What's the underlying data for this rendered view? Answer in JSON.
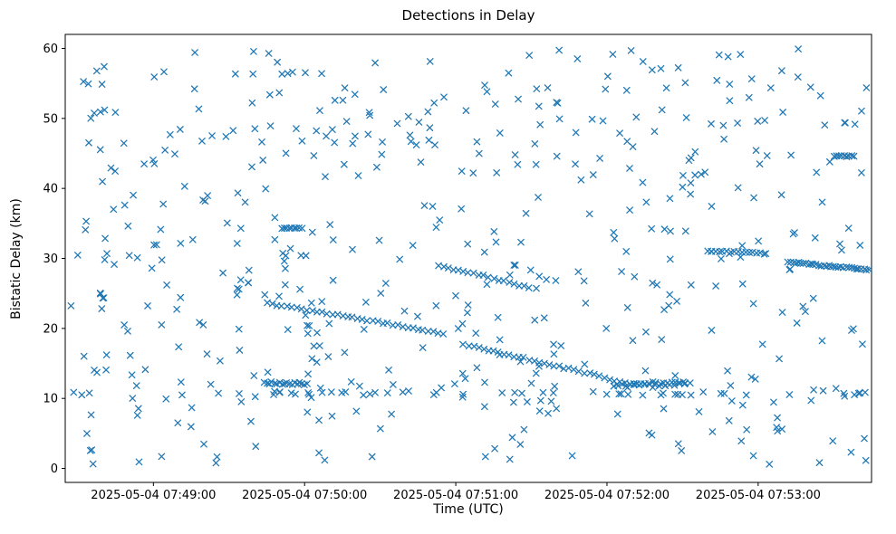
{
  "chart_data": {
    "type": "scatter",
    "title": "Detections in Delay",
    "xlabel": "Time (UTC)",
    "ylabel": "Bistatic Delay (km)",
    "marker": {
      "glyph": "x",
      "color": "#1f77b4",
      "size": 6
    },
    "x_axis": {
      "epoch_label": "2025-05-04 07:48:25",
      "domain_s": [
        0,
        320
      ],
      "ticks": [
        {
          "s": 35,
          "label": "2025-05-04 07:49:00"
        },
        {
          "s": 95,
          "label": "2025-05-04 07:50:00"
        },
        {
          "s": 155,
          "label": "2025-05-04 07:51:00"
        },
        {
          "s": 215,
          "label": "2025-05-04 07:52:00"
        },
        {
          "s": 275,
          "label": "2025-05-04 07:53:00"
        }
      ]
    },
    "y_axis": {
      "min": -2,
      "max": 62,
      "ticks": [
        0,
        10,
        20,
        30,
        40,
        50,
        60
      ]
    },
    "tracks": [
      {
        "name": "descending-track-main-upper",
        "step_s": 2,
        "jitter": 0.12,
        "waypoints": [
          [
            80,
            23.6
          ],
          [
            100,
            22.4
          ],
          [
            120,
            21.2
          ],
          [
            140,
            19.9
          ],
          [
            150,
            19.2
          ]
        ]
      },
      {
        "name": "descending-track-main-lower",
        "step_s": 2,
        "jitter": 0.15,
        "waypoints": [
          [
            158,
            17.8
          ],
          [
            172,
            16.6
          ],
          [
            188,
            15.2
          ],
          [
            204,
            13.9
          ],
          [
            214,
            12.9
          ],
          [
            224,
            12.1
          ],
          [
            236,
            11.8
          ],
          [
            248,
            12.2
          ]
        ]
      },
      {
        "name": "descending-track-mid",
        "step_s": 2,
        "jitter": 0.12,
        "waypoints": [
          [
            148,
            28.9
          ],
          [
            166,
            27.5
          ],
          [
            184,
            25.8
          ]
        ]
      },
      {
        "name": "right-track-flat-31km",
        "step_s": 1.5,
        "jitter": 0.1,
        "waypoints": [
          [
            255,
            31.1
          ],
          [
            278,
            30.7
          ]
        ]
      },
      {
        "name": "right-track-descending",
        "step_s": 1,
        "jitter": 0.1,
        "waypoints": [
          [
            287,
            29.5
          ],
          [
            300,
            29.0
          ],
          [
            319,
            28.4
          ]
        ]
      },
      {
        "name": "cluster-34km",
        "step_s": 1,
        "jitter": 0.08,
        "waypoints": [
          [
            86,
            34.3
          ],
          [
            94,
            34.3
          ]
        ]
      },
      {
        "name": "cluster-44km",
        "step_s": 1,
        "jitter": 0.08,
        "waypoints": [
          [
            305,
            44.6
          ],
          [
            313,
            44.6
          ]
        ]
      },
      {
        "name": "band-12km-left",
        "step_s": 1,
        "jitter": 0.18,
        "waypoints": [
          [
            79,
            12.2
          ],
          [
            96,
            12.1
          ]
        ]
      },
      {
        "name": "band-12km-right",
        "step_s": 1.5,
        "jitter": 0.2,
        "waypoints": [
          [
            218,
            11.8
          ],
          [
            233,
            12.2
          ],
          [
            246,
            12.2
          ]
        ]
      }
    ],
    "scatter_bands": [
      {
        "name": "band-10.7km-sparse",
        "seed": 99,
        "count": 42,
        "t_range": [
          3,
          318
        ],
        "y_center": 10.7,
        "y_jitter": 0.25
      }
    ],
    "noise": {
      "seed": 20250504,
      "count": 520,
      "t_range": [
        2,
        318
      ],
      "y_range": [
        0.5,
        60.0
      ]
    }
  }
}
